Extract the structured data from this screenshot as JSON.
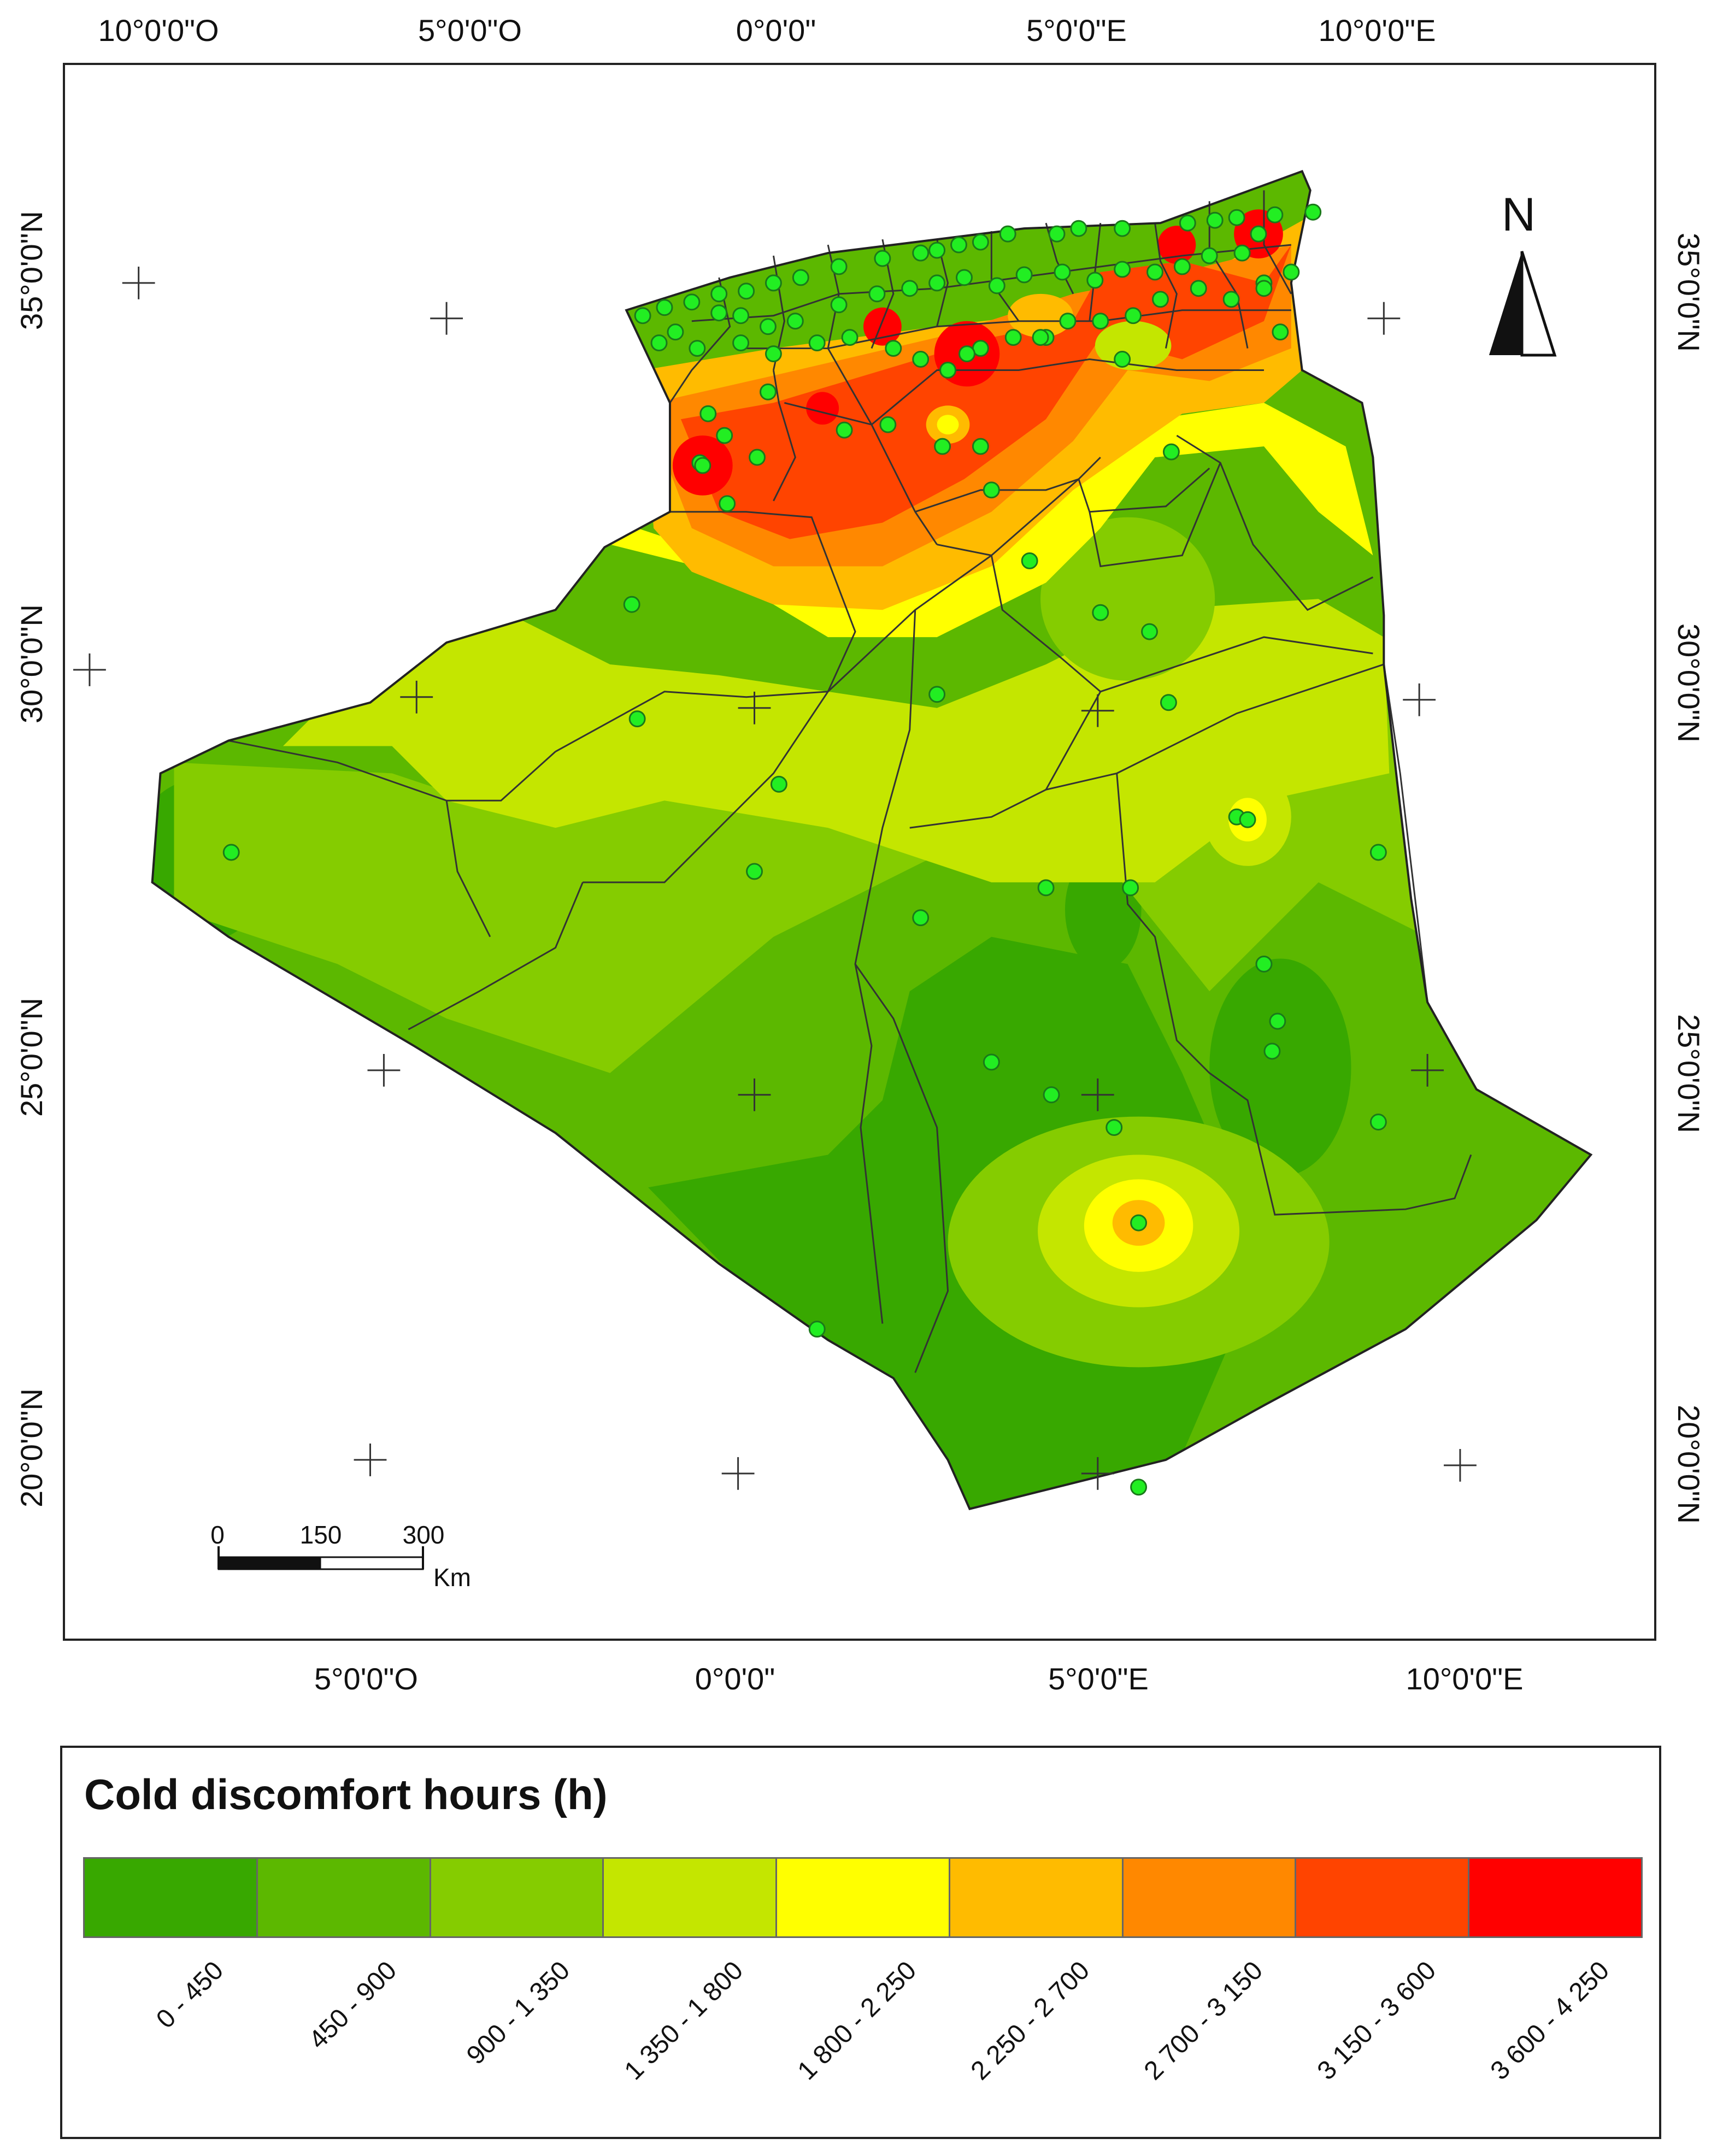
{
  "graticule": {
    "top": [
      "10°0'0\"O",
      "5°0'0\"O",
      "0°0'0\"",
      "5°0'0\"E",
      "10°0'0\"E"
    ],
    "bottom": [
      "5°0'0\"O",
      "0°0'0\"",
      "5°0'0\"E",
      "10°0'0\"E"
    ],
    "left": [
      "35°0'0\"N",
      "30°0'0\"N",
      "25°0'0\"N",
      "20°0'0\"N"
    ],
    "right": [
      "35°0'0\"N",
      "30°0'0\"N",
      "25°0'0\"N",
      "20°0'0\"N"
    ]
  },
  "north_arrow": {
    "letter": "N",
    "icon": "north-arrow-icon"
  },
  "scale_bar": {
    "ticks": [
      "0",
      "150",
      "300"
    ],
    "unit": "Km"
  },
  "legend": {
    "title": "Cold discomfort hours (h)",
    "classes": [
      {
        "label": "0 - 450",
        "color": "#38a800"
      },
      {
        "label": "450 - 900",
        "color": "#5cb800"
      },
      {
        "label": "900 - 1 350",
        "color": "#85cc00"
      },
      {
        "label": "1 350 - 1 800",
        "color": "#c4e600"
      },
      {
        "label": "1 800 - 2 250",
        "color": "#ffff00"
      },
      {
        "label": "2 250 - 2 700",
        "color": "#ffbb00"
      },
      {
        "label": "2 700 - 3 150",
        "color": "#ff8800"
      },
      {
        "label": "3 150 - 3 600",
        "color": "#ff4400"
      },
      {
        "label": "3 600 - 4 250",
        "color": "#ff0000"
      }
    ]
  },
  "station_color": "#22ee22"
}
